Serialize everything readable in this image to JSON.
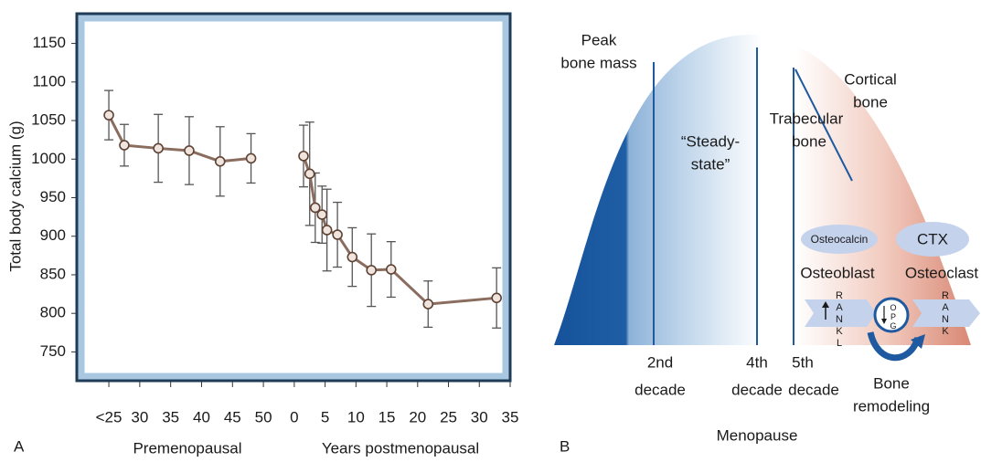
{
  "panel_a_label": "A",
  "panel_b_label": "B",
  "chart_data": [
    {
      "type": "line",
      "x_label": "Premenopausal",
      "y_label": "Total body calcium (g)",
      "x": [
        25,
        27.5,
        33,
        38,
        43,
        48
      ],
      "values": [
        1057,
        1018,
        1014,
        1011,
        997,
        1001
      ],
      "errors": [
        32,
        27,
        44,
        44,
        45,
        32
      ],
      "color": "#8a6d5e",
      "xlim": [
        21,
        52.5
      ],
      "xticks": [
        {
          "value": 25,
          "label": "<25"
        },
        30,
        35,
        40,
        45,
        50
      ],
      "ylim": [
        715,
        1185
      ],
      "yticks": [
        750,
        800,
        850,
        900,
        950,
        1000,
        1050,
        1100,
        1150
      ]
    },
    {
      "type": "line",
      "x_label": "Years postmenopausal",
      "x": [
        1.5,
        2.5,
        3.4,
        4.5,
        5.3,
        7,
        9.4,
        12.5,
        15.7,
        21.7,
        32.8
      ],
      "values": [
        1004,
        981,
        937,
        928,
        908,
        902,
        873,
        856,
        857,
        812,
        820
      ],
      "errors": [
        40,
        67,
        45,
        37,
        53,
        42,
        38,
        47,
        36,
        30,
        39
      ],
      "color": "#8a6d5e",
      "xlim": [
        -2.5,
        35
      ],
      "xticks": [
        0,
        5,
        10,
        15,
        20,
        25,
        30,
        35
      ],
      "ylim": [
        715,
        1185
      ]
    }
  ],
  "diagram": {
    "peak_bone_mass": [
      "Peak",
      "bone mass"
    ],
    "steady_state": [
      "“Steady-",
      "state”"
    ],
    "trabecular_bone": [
      "Trabecular",
      "bone"
    ],
    "cortical_bone": [
      "Cortical",
      "bone"
    ],
    "osteocalcin": "Osteocalcin",
    "ctx": "CTX",
    "osteoblast": "Osteoblast",
    "osteoclast": "Osteoclast",
    "rankl": "RANKL",
    "rank": "RANK",
    "opg": "OPG",
    "bone_remodeling": [
      "Bone",
      "remodeling"
    ],
    "decade_2": [
      "2nd",
      "decade"
    ],
    "decade_4": [
      "4th",
      "decade"
    ],
    "decade_5": [
      "5th",
      "decade"
    ],
    "menopause": "Menopause"
  }
}
